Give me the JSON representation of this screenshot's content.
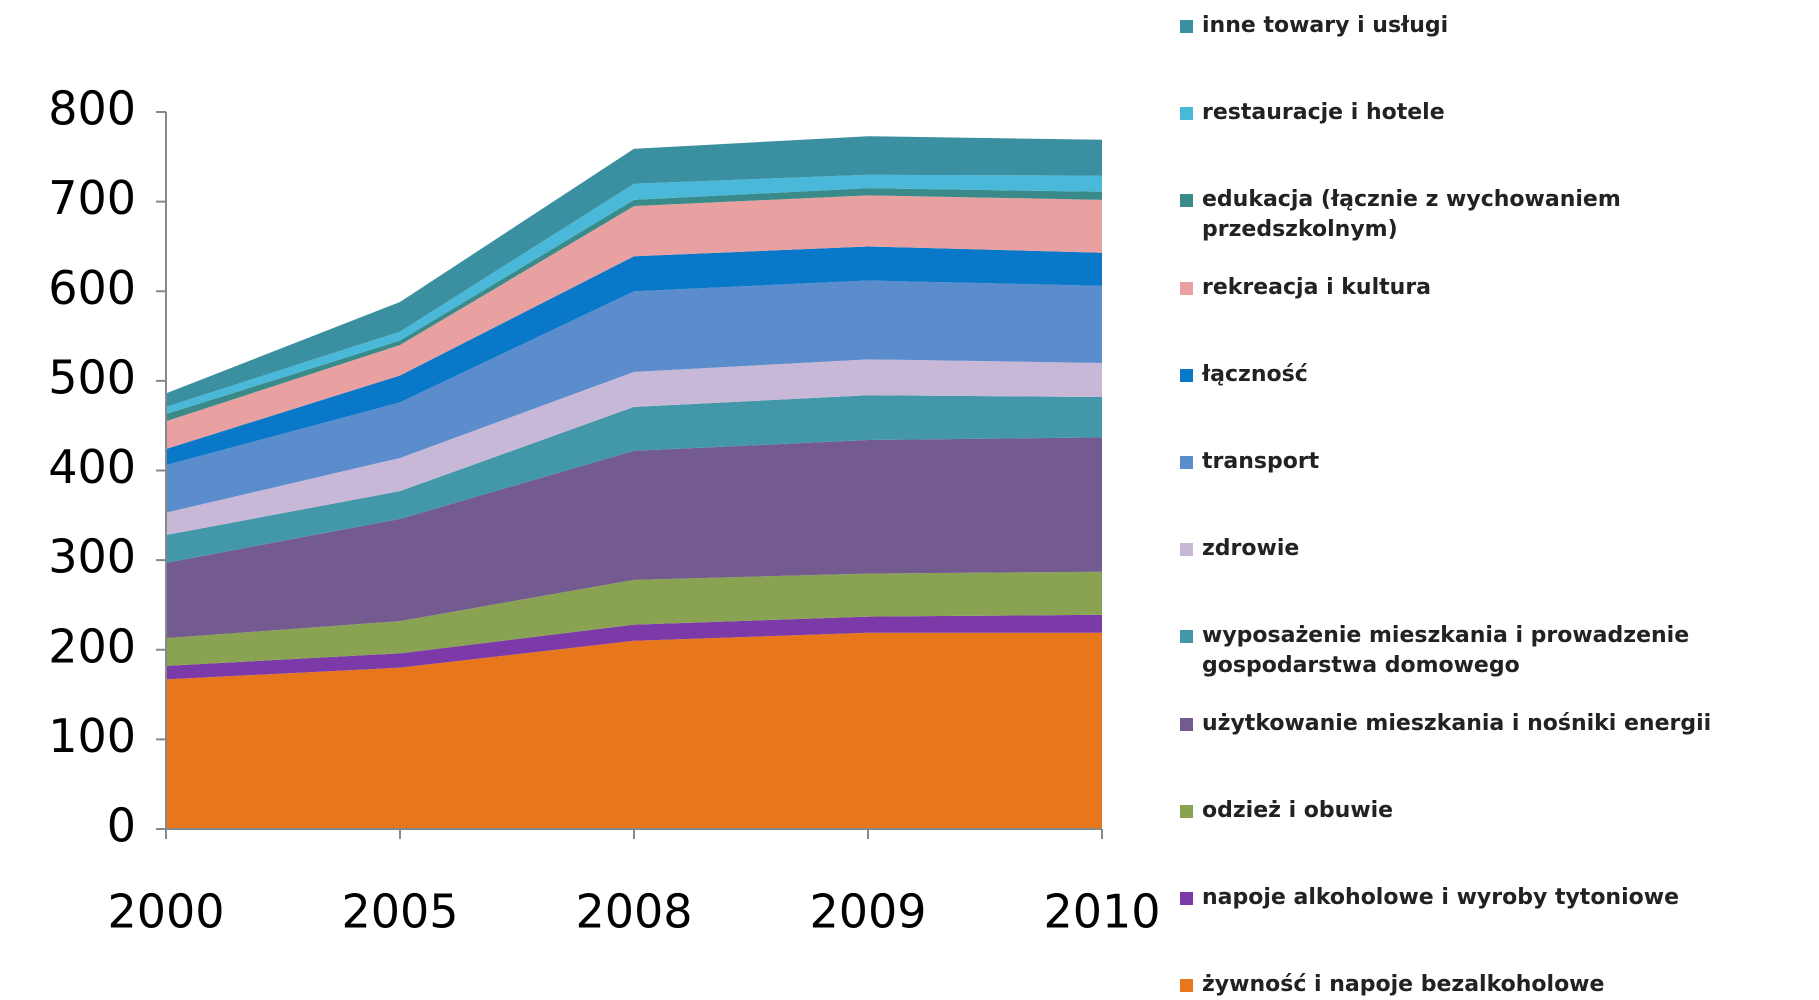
{
  "chart_data": {
    "type": "stacked_area",
    "categories": [
      "2000",
      "2005",
      "2008",
      "2009",
      "2010"
    ],
    "ylim": [
      0,
      800
    ],
    "yticks": [
      0,
      100,
      200,
      300,
      400,
      500,
      600,
      700,
      800
    ],
    "series": [
      {
        "name": "żywność i napoje bezalkoholowe",
        "color": "#e8761a",
        "values": [
          167,
          180,
          210,
          219,
          219
        ]
      },
      {
        "name": "napoje alkoholowe i wyroby tytoniowe",
        "color": "#7b3aa8",
        "values": [
          15,
          16,
          18,
          18,
          20
        ]
      },
      {
        "name": "odzież i obuwie",
        "color": "#8aa352",
        "values": [
          31,
          36,
          50,
          48,
          48
        ]
      },
      {
        "name": "użytkowanie mieszkania i nośniki energii",
        "color": "#735b8f",
        "values": [
          84,
          114,
          144,
          149,
          150
        ]
      },
      {
        "name": "wyposażenie mieszkania i prowadzenie gospodarstwa domowego",
        "color": "#4298a8",
        "values": [
          31,
          31,
          49,
          50,
          45
        ]
      },
      {
        "name": "zdrowie",
        "color": "#c8b8d8",
        "values": [
          25,
          37,
          39,
          40,
          38
        ]
      },
      {
        "name": "transport",
        "color": "#5b8ccb",
        "values": [
          53,
          62,
          90,
          88,
          86
        ]
      },
      {
        "name": "łączność",
        "color": "#0a78c8",
        "values": [
          18,
          30,
          39,
          38,
          37
        ]
      },
      {
        "name": "rekreacja i kultura",
        "color": "#e8a0a0",
        "values": [
          31,
          34,
          56,
          57,
          59
        ]
      },
      {
        "name": "edukacja (łącznie z wychowaniem przedszkolnym)",
        "color": "#3a8a8a",
        "values": [
          8,
          5,
          7,
          8,
          9
        ]
      },
      {
        "name": "restauracje i hotele",
        "color": "#4ab8d8",
        "values": [
          8,
          10,
          18,
          15,
          18
        ]
      },
      {
        "name": "inne towary i usługi",
        "color": "#3a8fa0",
        "values": [
          15,
          33,
          39,
          43,
          40
        ]
      }
    ]
  }
}
